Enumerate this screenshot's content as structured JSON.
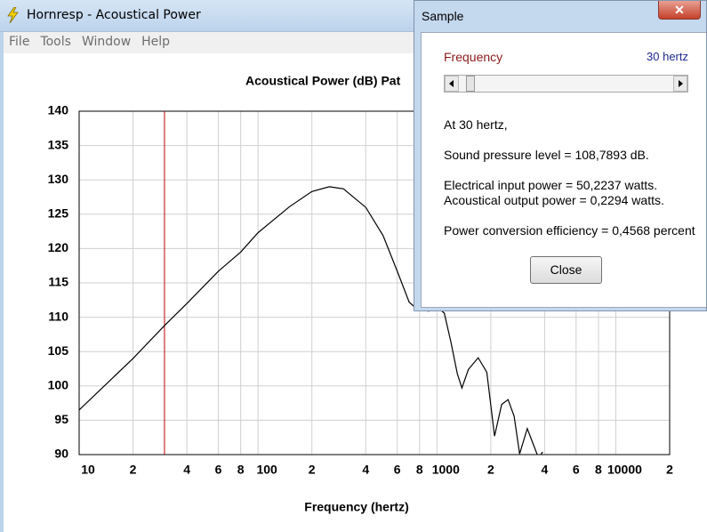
{
  "main_window": {
    "title": "Hornresp - Acoustical Power",
    "menu": [
      "File",
      "Tools",
      "Window",
      "Help"
    ]
  },
  "chart_data": {
    "type": "line",
    "title": "Acoustical Power (dB)   Pat",
    "x_label": "Frequency (hertz)",
    "x": [
      10,
      20,
      30,
      40,
      60,
      80,
      100,
      150,
      200,
      250,
      300,
      400,
      500,
      600,
      700,
      750,
      800,
      900,
      1000,
      1100,
      1200,
      1300,
      1380,
      1500,
      1700,
      1900,
      2100,
      2300,
      2500,
      2700,
      2900,
      3200,
      3400,
      3700,
      3900
    ],
    "values": [
      96.5,
      104,
      108.8,
      112,
      116.7,
      119.5,
      122.3,
      126.1,
      128.3,
      129,
      128.7,
      126,
      121.9,
      116.7,
      112.2,
      111.5,
      111.1,
      110.9,
      111.5,
      110.6,
      106.3,
      101.8,
      99.7,
      102.4,
      104.1,
      102,
      92.7,
      97.3,
      98,
      95.6,
      90.1,
      93.8,
      92,
      89.5,
      90.4
    ],
    "color": "#000000",
    "log_x": true,
    "grid": true,
    "xlim": [
      10,
      20000
    ],
    "ylim": [
      90,
      140
    ],
    "xticks": [
      10,
      {
        "value": 20,
        "label": "2"
      },
      {
        "value": 40,
        "label": "4"
      },
      {
        "value": 60,
        "label": "6"
      },
      {
        "value": 80,
        "label": "8"
      },
      100,
      {
        "value": 200,
        "label": "2"
      },
      {
        "value": 400,
        "label": "4"
      },
      {
        "value": 600,
        "label": "6"
      },
      {
        "value": 800,
        "label": "8"
      },
      1000,
      {
        "value": 2000,
        "label": "2"
      },
      {
        "value": 4000,
        "label": "4"
      },
      {
        "value": 6000,
        "label": "6"
      },
      {
        "value": 8000,
        "label": "8"
      },
      10000,
      {
        "value": 20000,
        "label": "2"
      }
    ],
    "yticks": [
      90,
      95,
      100,
      105,
      110,
      115,
      120,
      125,
      130,
      135,
      140
    ],
    "cursor_x": 30,
    "cursor_color": "#c00000"
  },
  "dialog": {
    "title": "Sample",
    "frequency_label": "Frequency",
    "frequency_value": "30 hertz",
    "lines": [
      "At 30 hertz,",
      "Sound pressure level = 108,7893 dB.",
      "Electrical input power = 50,2237 watts.",
      "Acoustical output power = 0,2294 watts.",
      "Power conversion efficiency = 0,4568 percent"
    ],
    "button": "Close"
  }
}
